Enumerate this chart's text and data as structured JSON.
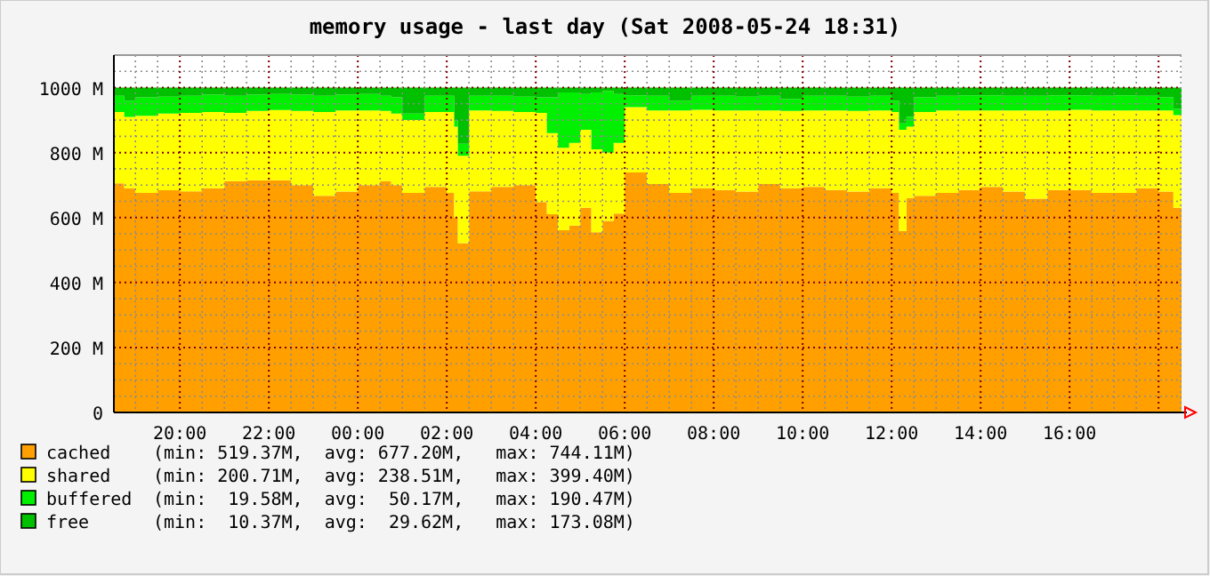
{
  "chart_data": {
    "type": "area",
    "title": "memory usage - last day (Sat 2008-05-24 18:31)",
    "stacked": true,
    "grid": true,
    "legend": "bottom left",
    "x": [
      "2008-05-23T18:31",
      "2008-05-23T18:45",
      "2008-05-23T19:00",
      "2008-05-23T19:30",
      "2008-05-23T20:00",
      "2008-05-23T20:30",
      "2008-05-23T21:00",
      "2008-05-23T21:30",
      "2008-05-23T22:00",
      "2008-05-23T22:30",
      "2008-05-23T23:00",
      "2008-05-23T23:30",
      "2008-05-24T00:00",
      "2008-05-24T00:30",
      "2008-05-24T00:45",
      "2008-05-24T01:00",
      "2008-05-24T01:30",
      "2008-05-24T02:00",
      "2008-05-24T02:10",
      "2008-05-24T02:15",
      "2008-05-24T02:30",
      "2008-05-24T03:00",
      "2008-05-24T03:30",
      "2008-05-24T04:00",
      "2008-05-24T04:15",
      "2008-05-24T04:30",
      "2008-05-24T04:45",
      "2008-05-24T05:00",
      "2008-05-24T05:15",
      "2008-05-24T05:30",
      "2008-05-24T05:45",
      "2008-05-24T06:00",
      "2008-05-24T06:30",
      "2008-05-24T07:00",
      "2008-05-24T07:30",
      "2008-05-24T08:00",
      "2008-05-24T08:30",
      "2008-05-24T09:00",
      "2008-05-24T09:30",
      "2008-05-24T10:00",
      "2008-05-24T10:30",
      "2008-05-24T11:00",
      "2008-05-24T11:30",
      "2008-05-24T12:00",
      "2008-05-24T12:10",
      "2008-05-24T12:20",
      "2008-05-24T12:30",
      "2008-05-24T13:00",
      "2008-05-24T13:30",
      "2008-05-24T14:00",
      "2008-05-24T14:30",
      "2008-05-24T15:00",
      "2008-05-24T15:30",
      "2008-05-24T16:00",
      "2008-05-24T16:30",
      "2008-05-24T17:00",
      "2008-05-24T17:30",
      "2008-05-24T18:00",
      "2008-05-24T18:20",
      "2008-05-24T18:31"
    ],
    "series": [
      {
        "name": "cached",
        "color": "#ffa000",
        "values": [
          705,
          690,
          676,
          684,
          681,
          690,
          712,
          715,
          715,
          700,
          667,
          680,
          700,
          712,
          700,
          676,
          694,
          676,
          600,
          521,
          681,
          694,
          700,
          648,
          610,
          561,
          575,
          630,
          555,
          590,
          612,
          739,
          703,
          676,
          690,
          685,
          680,
          703,
          690,
          694,
          685,
          680,
          690,
          676,
          559,
          660,
          667,
          676,
          685,
          694,
          680,
          658,
          685,
          685,
          676,
          676,
          690,
          680,
          630,
          700
        ]
      },
      {
        "name": "shared",
        "color": "#ffff00",
        "values": [
          220,
          220,
          237,
          236,
          241,
          235,
          210,
          213,
          216,
          228,
          258,
          250,
          230,
          216,
          220,
          224,
          231,
          249,
          280,
          269,
          249,
          234,
          225,
          274,
          250,
          254,
          255,
          240,
          255,
          210,
          218,
          201,
          227,
          254,
          242,
          245,
          250,
          227,
          238,
          236,
          245,
          248,
          240,
          249,
          311,
          220,
          258,
          254,
          245,
          236,
          250,
          272,
          245,
          247,
          254,
          254,
          240,
          250,
          285,
          230
        ]
      },
      {
        "name": "buffered",
        "color": "#00f000",
        "values": [
          50,
          50,
          57,
          52,
          53,
          53,
          53,
          50,
          49,
          50,
          50,
          48,
          50,
          47,
          50,
          20,
          50,
          50,
          20,
          37,
          45,
          47,
          47,
          48,
          110,
          170,
          155,
          110,
          175,
          190,
          150,
          36,
          45,
          30,
          43,
          45,
          42,
          45,
          37,
          45,
          45,
          44,
          45,
          35,
          20,
          30,
          45,
          45,
          46,
          46,
          45,
          45,
          46,
          44,
          45,
          46,
          45,
          40,
          20,
          45
        ]
      },
      {
        "name": "free",
        "color": "#00c000",
        "values": [
          25,
          40,
          30,
          28,
          25,
          22,
          25,
          22,
          20,
          22,
          25,
          22,
          20,
          25,
          30,
          80,
          25,
          25,
          100,
          173,
          25,
          25,
          28,
          30,
          30,
          15,
          15,
          20,
          15,
          10,
          20,
          24,
          25,
          40,
          25,
          25,
          28,
          25,
          35,
          25,
          25,
          28,
          25,
          40,
          110,
          90,
          30,
          25,
          24,
          24,
          25,
          25,
          24,
          24,
          25,
          24,
          25,
          30,
          65,
          25
        ]
      }
    ],
    "annotations": [
      "(min: 519.37M,  avg: 677.20M,   max: 744.11M)",
      "(min: 200.71M,  avg: 238.51M,   max: 399.40M)",
      "(min:  19.58M,  avg:  50.17M,   max: 190.47M)",
      "(min:  10.37M,  avg:  29.62M,   max: 173.08M)"
    ],
    "xlim": [
      "2008-05-23T18:31",
      "2008-05-24T18:31"
    ],
    "xticks": [
      {
        "value": "2008-05-23T19:00",
        "label": null
      },
      {
        "value": "2008-05-23T19:30",
        "label": null
      },
      {
        "value": "2008-05-23T20:00",
        "label": "20:00"
      },
      {
        "value": "2008-05-23T20:30",
        "label": null
      },
      {
        "value": "2008-05-23T21:00",
        "label": null
      },
      {
        "value": "2008-05-23T21:30",
        "label": null
      },
      {
        "value": "2008-05-23T22:00",
        "label": "22:00"
      },
      {
        "value": "2008-05-23T22:30",
        "label": null
      },
      {
        "value": "2008-05-23T23:00",
        "label": null
      },
      {
        "value": "2008-05-23T23:30",
        "label": null
      },
      {
        "value": "2008-05-24T00:00",
        "label": "00:00"
      },
      {
        "value": "2008-05-24T00:30",
        "label": null
      },
      {
        "value": "2008-05-24T01:00",
        "label": null
      },
      {
        "value": "2008-05-24T01:30",
        "label": null
      },
      {
        "value": "2008-05-24T02:00",
        "label": "02:00"
      },
      {
        "value": "2008-05-24T02:30",
        "label": null
      },
      {
        "value": "2008-05-24T03:00",
        "label": null
      },
      {
        "value": "2008-05-24T03:30",
        "label": null
      },
      {
        "value": "2008-05-24T04:00",
        "label": "04:00"
      },
      {
        "value": "2008-05-24T04:30",
        "label": null
      },
      {
        "value": "2008-05-24T05:00",
        "label": null
      },
      {
        "value": "2008-05-24T05:30",
        "label": null
      },
      {
        "value": "2008-05-24T06:00",
        "label": "06:00"
      },
      {
        "value": "2008-05-24T06:30",
        "label": null
      },
      {
        "value": "2008-05-24T07:00",
        "label": null
      },
      {
        "value": "2008-05-24T07:30",
        "label": null
      },
      {
        "value": "2008-05-24T08:00",
        "label": "08:00"
      },
      {
        "value": "2008-05-24T08:30",
        "label": null
      },
      {
        "value": "2008-05-24T09:00",
        "label": null
      },
      {
        "value": "2008-05-24T09:30",
        "label": null
      },
      {
        "value": "2008-05-24T10:00",
        "label": "10:00"
      },
      {
        "value": "2008-05-24T10:30",
        "label": null
      },
      {
        "value": "2008-05-24T11:00",
        "label": null
      },
      {
        "value": "2008-05-24T11:30",
        "label": null
      },
      {
        "value": "2008-05-24T12:00",
        "label": "12:00"
      },
      {
        "value": "2008-05-24T12:30",
        "label": null
      },
      {
        "value": "2008-05-24T13:00",
        "label": null
      },
      {
        "value": "2008-05-24T13:30",
        "label": null
      },
      {
        "value": "2008-05-24T14:00",
        "label": "14:00"
      },
      {
        "value": "2008-05-24T14:30",
        "label": null
      },
      {
        "value": "2008-05-24T15:00",
        "label": null
      },
      {
        "value": "2008-05-24T15:30",
        "label": null
      },
      {
        "value": "2008-05-24T16:00",
        "label": "16:00"
      },
      {
        "value": "2008-05-24T16:30",
        "label": null
      },
      {
        "value": "2008-05-24T17:00",
        "label": null
      },
      {
        "value": "2008-05-24T17:30",
        "label": null
      },
      {
        "value": "2008-05-24T18:00",
        "label": null
      },
      {
        "value": "2008-05-24T18:30",
        "label": null
      }
    ],
    "ylim": [
      0,
      1100
    ],
    "yticks": [
      0,
      {
        "value": 50,
        "label": null
      },
      {
        "value": 100,
        "label": null
      },
      {
        "value": 150,
        "label": null
      },
      {
        "value": 200,
        "label": "200 M"
      },
      {
        "value": 250,
        "label": null
      },
      {
        "value": 300,
        "label": null
      },
      {
        "value": 350,
        "label": null
      },
      {
        "value": 400,
        "label": "400 M"
      },
      {
        "value": 450,
        "label": null
      },
      {
        "value": 500,
        "label": null
      },
      {
        "value": 550,
        "label": null
      },
      {
        "value": 600,
        "label": "600 M"
      },
      {
        "value": 650,
        "label": null
      },
      {
        "value": 700,
        "label": null
      },
      {
        "value": 750,
        "label": null
      },
      {
        "value": 800,
        "label": "800 M"
      },
      {
        "value": 850,
        "label": null
      },
      {
        "value": 900,
        "label": null
      },
      {
        "value": 950,
        "label": null
      },
      {
        "value": 1000,
        "label": "1000 M"
      },
      {
        "value": 1050,
        "label": null
      },
      {
        "value": 1100,
        "label": null
      }
    ]
  }
}
